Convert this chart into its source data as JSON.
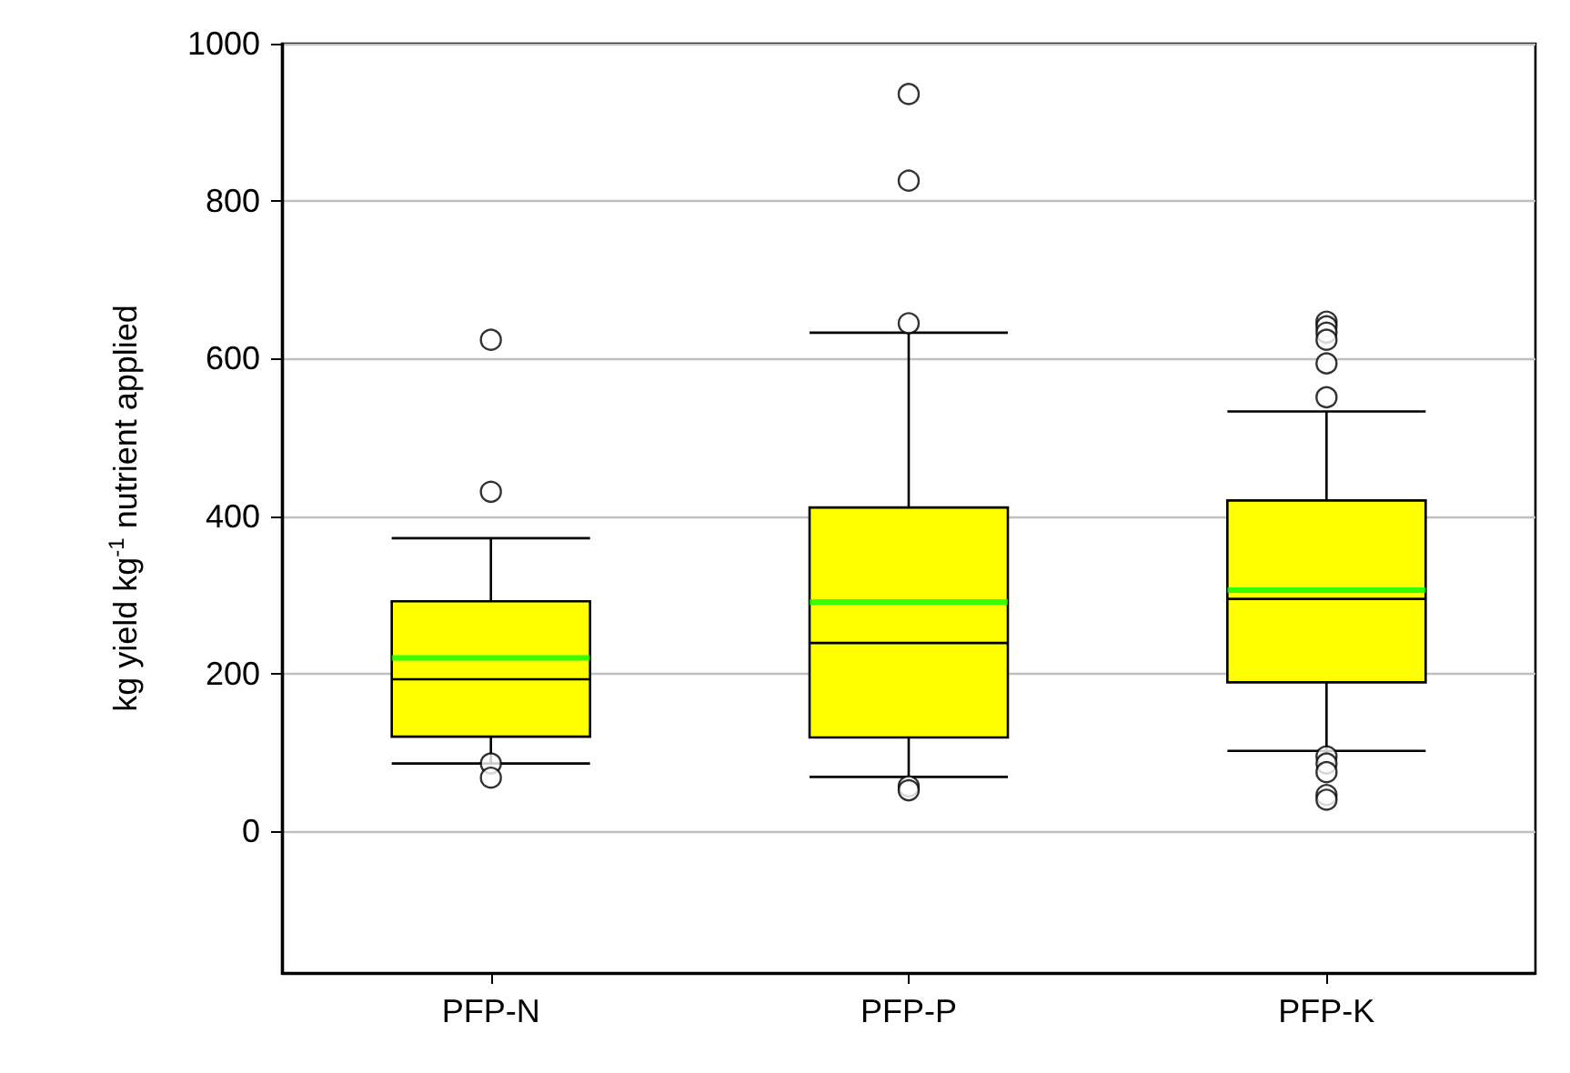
{
  "chart_data": {
    "type": "box",
    "ylabel": "kg yield kg$^{-1}$ nutrient applied",
    "categories": [
      "PFP-N",
      "PFP-P",
      "PFP-K"
    ],
    "series": [
      {
        "color": "#ffff00",
        "boxes": [
          {
            "low": 86,
            "q1": 120,
            "median": 193,
            "q3": 292,
            "high": 372,
            "mean": 220,
            "outliers": [
              624,
              431,
              86,
              68
            ]
          },
          {
            "low": 69,
            "q1": 119,
            "median": 239,
            "q3": 411,
            "high": 633,
            "mean": 291,
            "outliers": [
              936,
              826,
              645,
              57,
              52
            ]
          },
          {
            "low": 102,
            "q1": 189,
            "median": 295,
            "q3": 420,
            "high": 533,
            "mean": 306,
            "outliers": [
              647,
              641,
              633,
              624,
              594,
              551,
              95,
              86,
              75,
              46,
              40
            ]
          }
        ]
      }
    ],
    "ylim": [
      -180,
      1000
    ],
    "yticks": [
      0,
      200,
      400,
      600,
      800,
      1000
    ],
    "grid": "y",
    "marker": "circle"
  }
}
